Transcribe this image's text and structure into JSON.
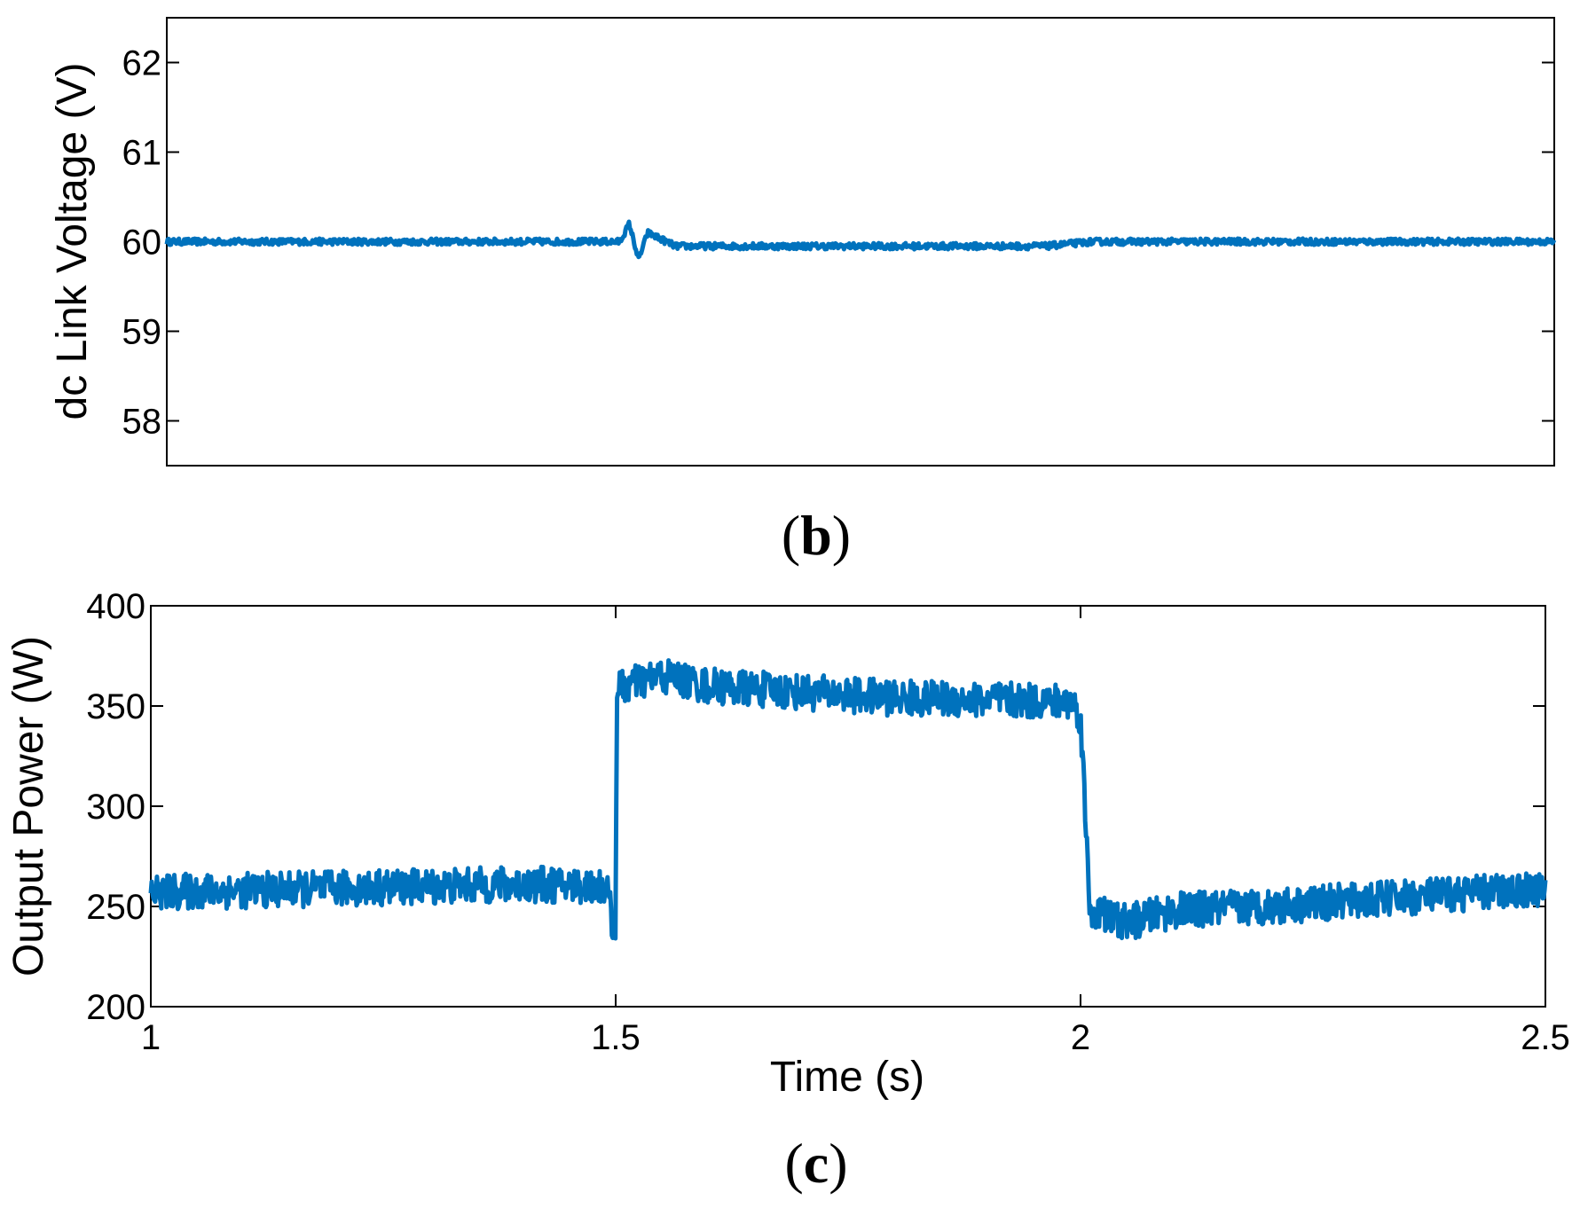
{
  "chart_data": [
    {
      "type": "line",
      "panel_label_open": "(",
      "panel_label": "b",
      "panel_label_close": ")",
      "ylabel": "dc Link Voltage (V)",
      "xlabel": "",
      "xlim": [
        1,
        2.5
      ],
      "ylim": [
        57.5,
        62.5
      ],
      "yticks": [
        58,
        59,
        60,
        61,
        62
      ],
      "xticks": [],
      "grid": false,
      "line_color": "#0072bd",
      "series": [
        {
          "x": [
            1.0,
            1.05,
            1.1,
            1.15,
            1.2,
            1.25,
            1.3,
            1.35,
            1.4,
            1.45,
            1.49,
            1.5,
            1.51,
            1.52,
            1.55,
            1.6,
            1.65,
            1.7,
            1.75,
            1.8,
            1.85,
            1.9,
            1.95,
            2.0,
            2.01,
            2.05,
            2.1,
            2.15,
            2.2,
            2.25,
            2.3,
            2.35,
            2.4,
            2.45,
            2.5
          ],
          "values": [
            60.0,
            60.0,
            60.0,
            60.0,
            60.0,
            60.0,
            60.0,
            60.0,
            60.0,
            60.0,
            60.0,
            60.2,
            59.8,
            60.1,
            59.95,
            59.95,
            59.95,
            59.95,
            59.95,
            59.95,
            59.95,
            59.95,
            59.95,
            60.0,
            60.0,
            60.0,
            60.0,
            60.0,
            60.0,
            60.0,
            60.0,
            60.0,
            60.0,
            60.0,
            60.0
          ]
        }
      ]
    },
    {
      "type": "line",
      "panel_label_open": "(",
      "panel_label": "c",
      "panel_label_close": ")",
      "ylabel": "Output Power (W)",
      "xlabel": "Time (s)",
      "xlim": [
        1,
        2.5
      ],
      "ylim": [
        200,
        400
      ],
      "yticks": [
        200,
        250,
        300,
        350,
        400
      ],
      "xticks": [
        1,
        1.5,
        2,
        2.5
      ],
      "xticklabels": [
        "1",
        "1.5",
        "2",
        "2.5"
      ],
      "grid": false,
      "line_color": "#0072bd",
      "series": [
        {
          "x": [
            1.0,
            1.1,
            1.2,
            1.3,
            1.4,
            1.49,
            1.5,
            1.501,
            1.51,
            1.55,
            1.6,
            1.7,
            1.8,
            1.9,
            1.99,
            2.0,
            2.01,
            2.05,
            2.1,
            2.2,
            2.3,
            2.4,
            2.5
          ],
          "values": [
            257,
            258,
            259,
            260,
            261,
            260,
            232,
            358,
            360,
            365,
            360,
            357,
            354,
            353,
            352,
            345,
            248,
            242,
            248,
            250,
            253,
            256,
            259
          ]
        }
      ]
    }
  ]
}
